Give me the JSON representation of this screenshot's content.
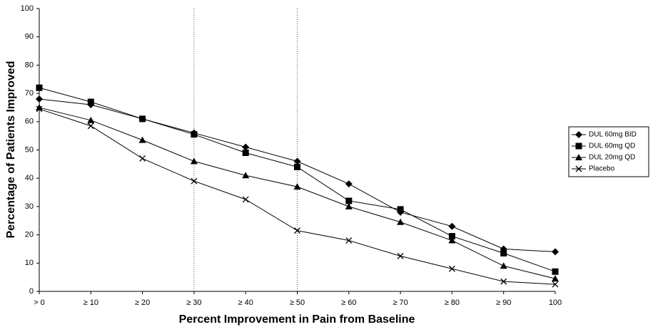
{
  "chart_data": {
    "type": "line",
    "xlabel": "Percent Improvement in Pain from Baseline",
    "ylabel": "Percentage of Patients Improved",
    "categories": [
      "> 0",
      "≥ 10",
      "≥ 20",
      "≥ 30",
      "≥ 40",
      "≥ 50",
      "≥ 60",
      "≥ 70",
      "≥ 80",
      "≥ 90",
      "100"
    ],
    "series": [
      {
        "name": "DUL 60mg BID",
        "color": "#000000",
        "marker": "diamond",
        "values": [
          68,
          66,
          61,
          56,
          51,
          46,
          38,
          28,
          23,
          15,
          14
        ]
      },
      {
        "name": "DUL 60mg QD",
        "color": "#000000",
        "marker": "square",
        "values": [
          72,
          67,
          61,
          55.5,
          49,
          44,
          32,
          29,
          19.5,
          13.5,
          7
        ]
      },
      {
        "name": "DUL 20mg QD",
        "color": "#000000",
        "marker": "triangle",
        "values": [
          65,
          60.5,
          53.5,
          46,
          41,
          37,
          30,
          24.5,
          18,
          9,
          4.5
        ]
      },
      {
        "name": "Placebo",
        "color": "#000000",
        "marker": "x",
        "values": [
          64.5,
          58.5,
          47,
          39,
          32.5,
          21.5,
          18,
          12.5,
          8,
          3.5,
          2.5
        ]
      }
    ],
    "ylim": [
      0,
      100
    ],
    "yticks": [
      0,
      10,
      20,
      30,
      40,
      50,
      60,
      70,
      80,
      90,
      100
    ],
    "legend": "right"
  }
}
